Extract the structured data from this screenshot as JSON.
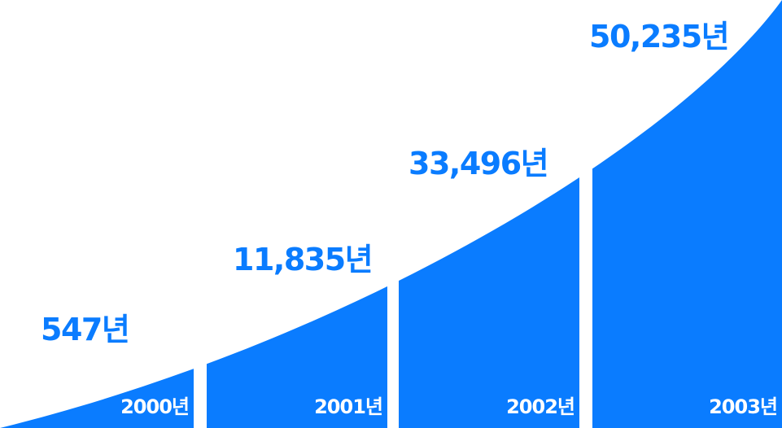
{
  "chart_data": {
    "type": "area",
    "categories": [
      "2000년",
      "2001년",
      "2002년",
      "2003년"
    ],
    "values": [
      547,
      11835,
      33496,
      50235
    ],
    "data_labels": [
      "547년",
      "11,835년",
      "33,496년",
      "50,235년"
    ],
    "title": "",
    "xlabel": "",
    "ylabel": "",
    "ylim": [
      0,
      60000
    ],
    "grid": false,
    "legend": "none"
  },
  "colors": {
    "fill": "#0a7cff",
    "value_text": "#0a7cff",
    "year_text": "#ffffff",
    "background": "#ffffff"
  }
}
